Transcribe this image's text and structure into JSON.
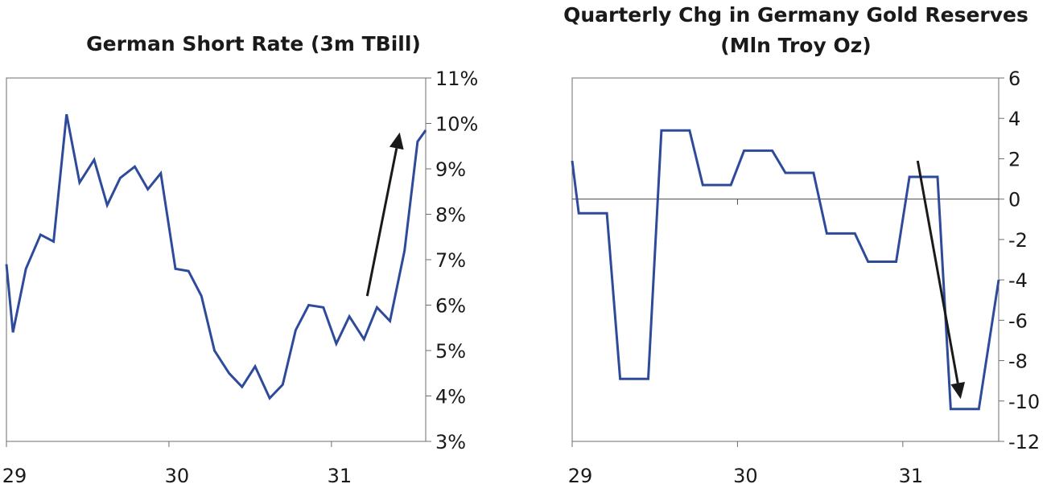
{
  "chart_data": [
    {
      "type": "line",
      "title": "German Short Rate (3m TBill)",
      "xlabel": "",
      "ylabel": "",
      "x_tick_labels": [
        "29",
        "30",
        "31"
      ],
      "y_tick_labels": [
        "11%",
        "10%",
        "9%",
        "8%",
        "7%",
        "6%",
        "5%",
        "4%",
        "3%"
      ],
      "ylim": [
        3,
        11
      ],
      "xlim": [
        1929.0,
        1931.58
      ],
      "grid": false,
      "line_color": "#2e4a9a",
      "series": [
        {
          "x": [
            1929.0,
            1929.04,
            1929.12,
            1929.21,
            1929.29,
            1929.37,
            1929.45,
            1929.54,
            1929.62,
            1929.7,
            1929.79,
            1929.87,
            1929.95,
            1930.04,
            1930.12,
            1930.2,
            1930.28,
            1930.37,
            1930.45,
            1930.53,
            1930.62,
            1930.7,
            1930.78,
            1930.86,
            1930.95,
            1931.03,
            1931.11,
            1931.2,
            1931.28,
            1931.36,
            1931.45,
            1931.53,
            1931.58
          ],
          "values": [
            6.9,
            5.4,
            6.8,
            7.55,
            7.4,
            10.2,
            8.7,
            9.2,
            8.2,
            8.8,
            9.05,
            8.55,
            8.9,
            6.8,
            6.75,
            6.2,
            5.0,
            4.5,
            4.2,
            4.65,
            3.95,
            4.25,
            5.45,
            6.0,
            5.95,
            5.15,
            5.75,
            5.25,
            5.95,
            5.65,
            7.2,
            9.6,
            9.85
          ]
        }
      ],
      "annotations": [
        {
          "type": "arrow",
          "from": [
            1931.22,
            6.2
          ],
          "to": [
            1931.42,
            9.8
          ],
          "color": "#1a1a1a"
        }
      ]
    },
    {
      "type": "line",
      "title": "Quarterly Chg in Germany Gold Reserves",
      "subtitle": "(Mln Troy Oz)",
      "xlabel": "",
      "ylabel": "",
      "x_tick_labels": [
        "29",
        "30",
        "31"
      ],
      "y_tick_labels": [
        "6",
        "4",
        "2",
        "0",
        "-2",
        "-4",
        "-6",
        "-8",
        "-10",
        "-12"
      ],
      "ylim": [
        -12,
        6
      ],
      "xlim": [
        1929.0,
        1931.58
      ],
      "grid": false,
      "zero_line": true,
      "line_color": "#2e4a9a",
      "series": [
        {
          "x": [
            1929.0,
            1929.04,
            1929.21,
            1929.29,
            1929.46,
            1929.54,
            1929.71,
            1929.79,
            1929.96,
            1930.04,
            1930.21,
            1930.29,
            1930.46,
            1930.54,
            1930.71,
            1930.79,
            1930.96,
            1931.04,
            1931.21,
            1931.29,
            1931.46,
            1931.58
          ],
          "values": [
            1.9,
            -0.7,
            -0.7,
            -8.9,
            -8.9,
            3.4,
            3.4,
            0.7,
            0.7,
            2.4,
            2.4,
            1.3,
            1.3,
            -1.7,
            -1.7,
            -3.1,
            -3.1,
            1.1,
            1.1,
            -10.4,
            -10.4,
            -4.0
          ]
        }
      ],
      "annotations": [
        {
          "type": "arrow",
          "from": [
            1931.09,
            1.9
          ],
          "to": [
            1931.35,
            -9.9
          ],
          "color": "#1a1a1a"
        }
      ]
    }
  ]
}
